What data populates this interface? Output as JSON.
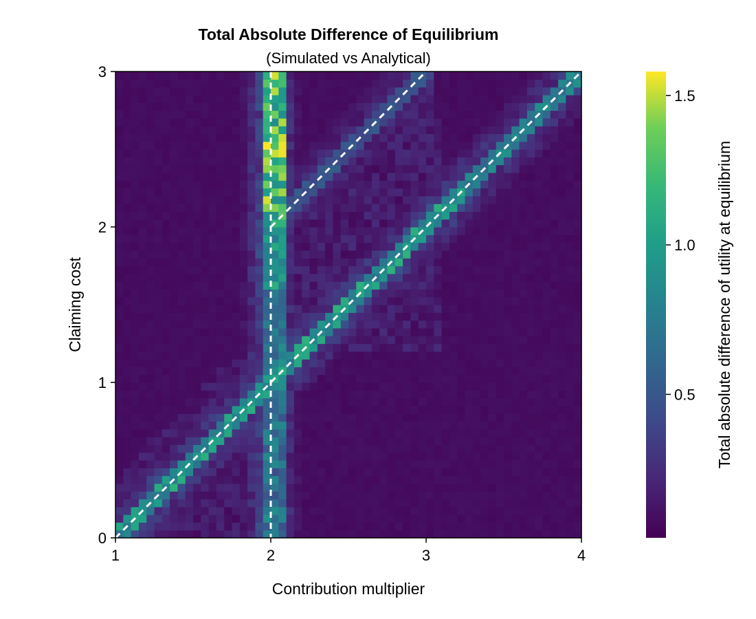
{
  "chart_data": {
    "type": "heatmap",
    "title": "Total Absolute Difference of Equilibrium",
    "subtitle": "(Simulated vs Analytical)",
    "xlabel": "Contribution multiplier",
    "ylabel": "Claiming cost",
    "colorbar_label": "Total absolute difference of utility at equilibrium",
    "colormap": "viridis",
    "xlim": [
      1,
      4
    ],
    "ylim": [
      0,
      3
    ],
    "grid_size": [
      60,
      60
    ],
    "clim": [
      0.02,
      1.58
    ],
    "xticks": [
      1,
      2,
      3,
      4
    ],
    "yticks": [
      0,
      1,
      2,
      3
    ],
    "colorbar_ticks": [
      0.5,
      1.0,
      1.5
    ],
    "xtick_labels": [
      "1",
      "2",
      "3",
      "4"
    ],
    "ytick_labels": [
      "0",
      "1",
      "2",
      "3"
    ],
    "colorbar_tick_labels": [
      "0.5",
      "1.0",
      "1.5"
    ],
    "reference_lines": [
      {
        "type": "vertical",
        "x": 2
      },
      {
        "type": "line",
        "points": [
          [
            1,
            0
          ],
          [
            4,
            3
          ]
        ]
      },
      {
        "type": "line",
        "points": [
          [
            2,
            2
          ],
          [
            3,
            3
          ]
        ]
      }
    ],
    "reference_line_color": "#ffffff",
    "reference_line_style": "dashed"
  }
}
